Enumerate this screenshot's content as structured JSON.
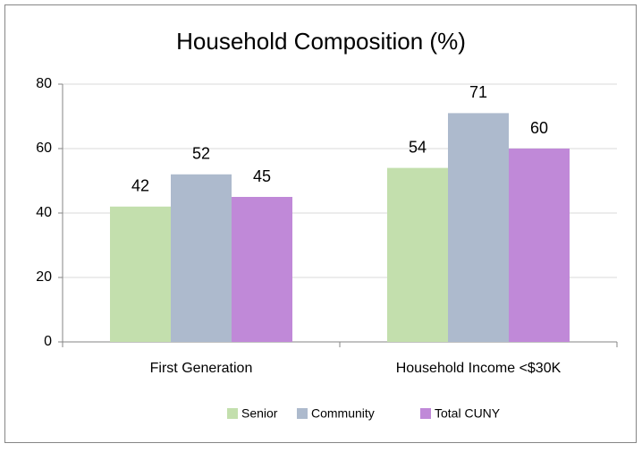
{
  "chart_data": {
    "type": "bar",
    "title": "Household Composition (%)",
    "categories": [
      "First Generation",
      "Household Income <$30K"
    ],
    "series": [
      {
        "name": "Senior",
        "color": "#c3dfad",
        "values": [
          42,
          54
        ]
      },
      {
        "name": "Community",
        "color": "#adbacd",
        "values": [
          52,
          71
        ]
      },
      {
        "name": "Total CUNY",
        "color": "#c089d8",
        "values": [
          45,
          60
        ]
      }
    ],
    "ylim": [
      0,
      80
    ],
    "yticks": [
      0,
      20,
      40,
      60,
      80
    ],
    "grid": true,
    "legend": "bottom"
  }
}
